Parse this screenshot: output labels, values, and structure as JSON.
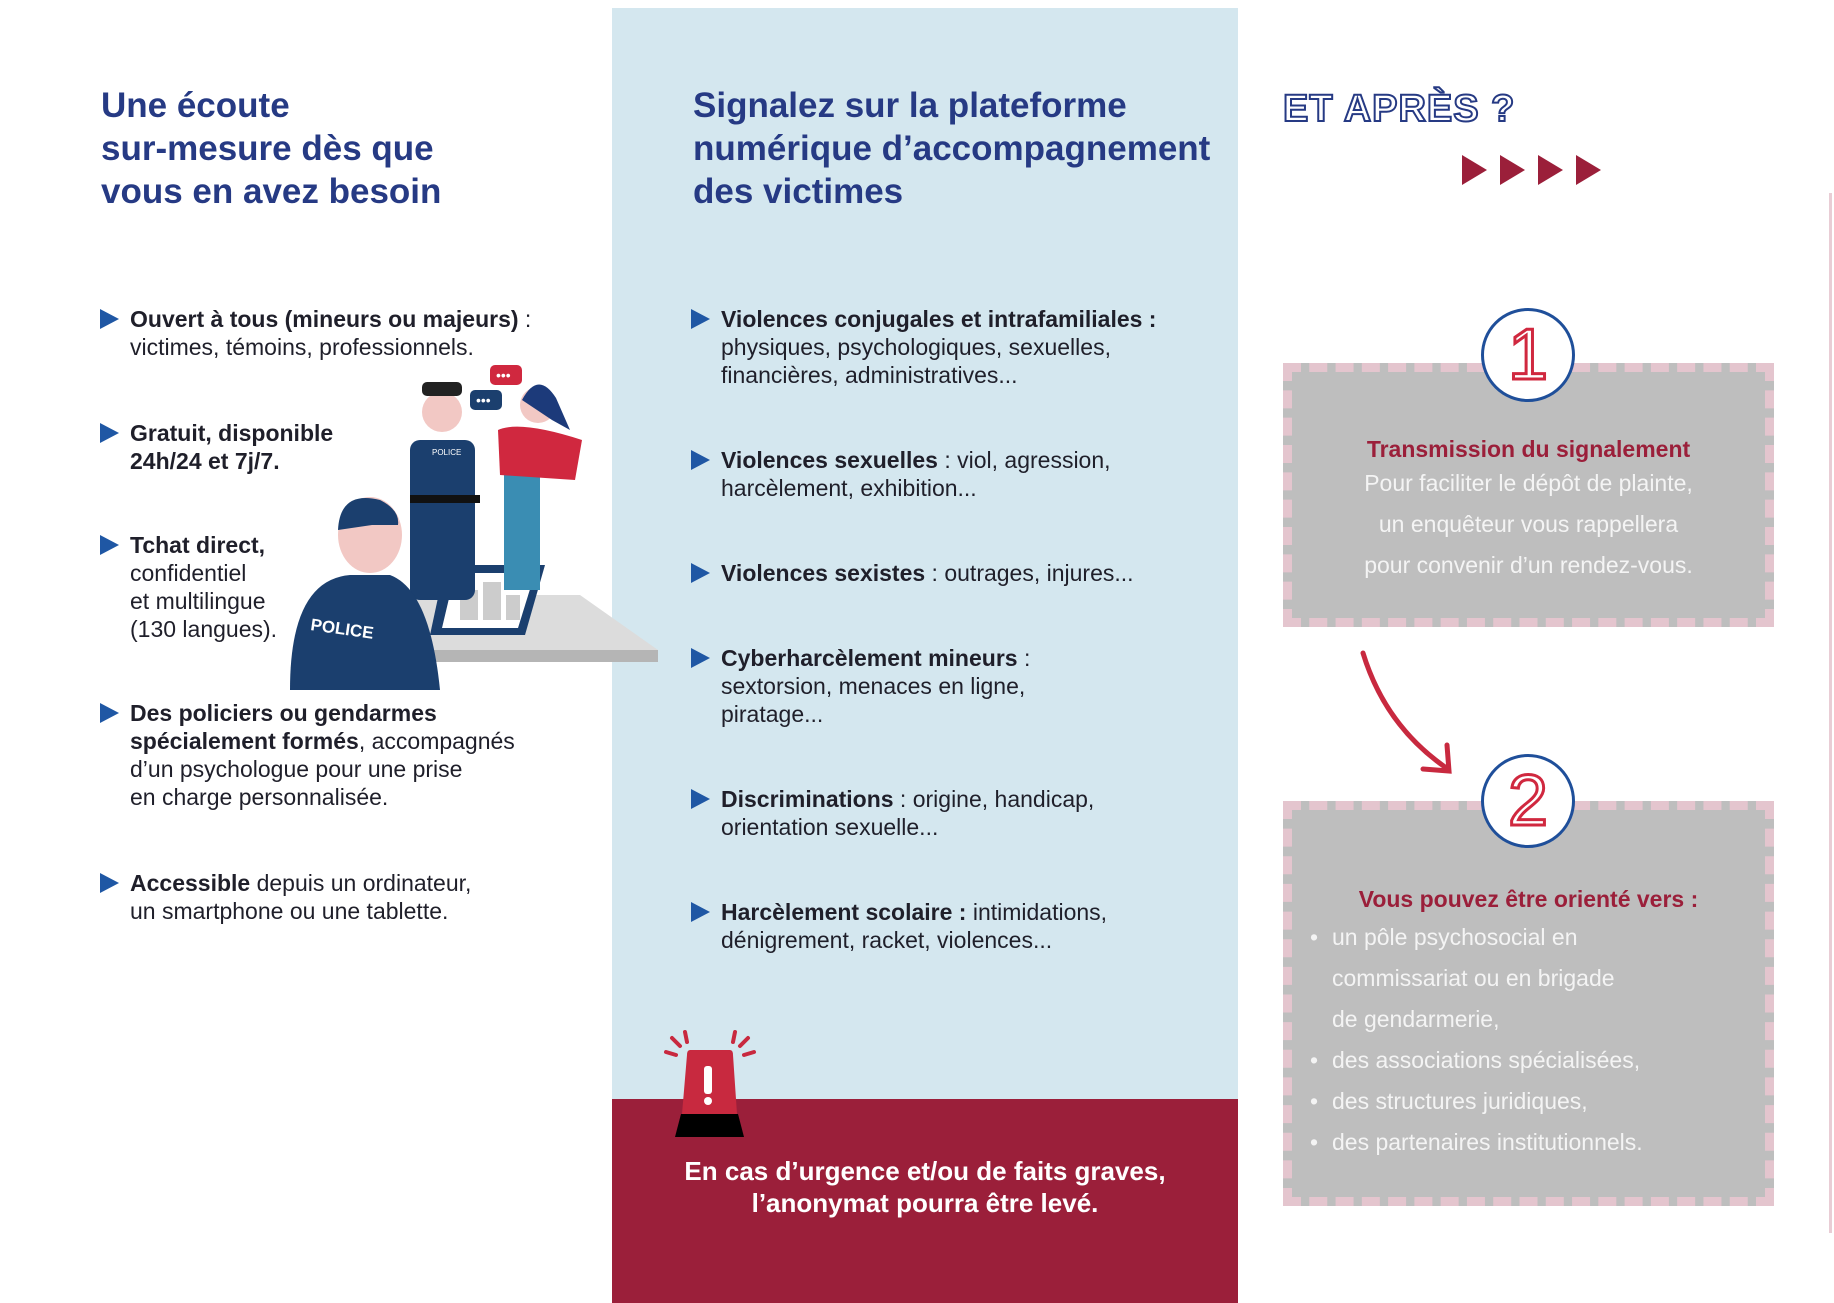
{
  "left": {
    "title": [
      "Une écoute",
      "sur-mesure dès que",
      "vous en avez besoin"
    ],
    "items": [
      {
        "bold": "Ouvert à tous (mineurs ou majeurs)",
        "rest": " :",
        "lines": [
          "victimes, témoins, professionnels."
        ]
      },
      {
        "bold": "Gratuit, disponible",
        "rest": "",
        "lines_bold": [
          "24h/24 et 7j/7."
        ]
      },
      {
        "bold": "Tchat direct,",
        "rest": "",
        "lines": [
          "confidentiel",
          "et multilingue",
          "(130 langues)."
        ]
      },
      {
        "bold": "Des policiers ou gendarmes",
        "rest": "",
        "line2_bold": "spécialement formés",
        "line2_rest": ", accompagnés",
        "lines": [
          "d’un psychologue pour une prise",
          "en charge personnalisée."
        ]
      },
      {
        "bold": "Accessible",
        "rest": " depuis un ordinateur,",
        "lines": [
          "un smartphone ou une tablette."
        ]
      }
    ],
    "illustration": {
      "police_label": "POLICE",
      "badge_label": "POLICE"
    }
  },
  "middle": {
    "title": [
      "Signalez sur la plateforme",
      "numérique d’accompagnement",
      "des victimes"
    ],
    "items": [
      {
        "bold": "Violences conjugales et intrafamiliales :",
        "rest": "",
        "lines": [
          "physiques, psychologiques, sexuelles,",
          "financières, administratives..."
        ]
      },
      {
        "bold": "Violences sexuelles",
        "rest": " : viol, agression,",
        "lines": [
          "harcèlement, exhibition..."
        ]
      },
      {
        "bold": "Violences sexistes",
        "rest": " : outrages, injures...",
        "lines": []
      },
      {
        "bold": "Cyberharcèlement mineurs",
        "rest": " :",
        "lines": [
          "sextorsion, menaces en ligne,",
          "piratage..."
        ]
      },
      {
        "bold": "Discriminations",
        "rest": " : origine, handicap,",
        "lines": [
          "orientation sexuelle..."
        ]
      },
      {
        "bold": "Harcèlement scolaire :",
        "rest": " intimidations,",
        "lines": [
          "dénigrement, racket, violences..."
        ]
      }
    ],
    "urgent": [
      "En cas d’urgence et/ou de faits graves,",
      "l’anonymat pourra être levé."
    ],
    "alarm_icon": "siren-icon"
  },
  "right": {
    "title": "ET APRÈS ?",
    "step1": {
      "number": "1",
      "title": "Transmission du signalement",
      "lines": [
        "Pour faciliter le dépôt de plainte,",
        "un enquêteur vous rappellera",
        "pour convenir d’un rendez-vous."
      ]
    },
    "step2": {
      "number": "2",
      "title": "Vous pouvez être orienté vers :",
      "bullets": [
        [
          "un pôle psychosocial en",
          "commissariat ou en brigade",
          "de gendarmerie,"
        ],
        [
          "des associations spécialisées,"
        ],
        [
          "des structures juridiques,"
        ],
        [
          "des partenaires institutionnels."
        ]
      ]
    }
  },
  "colors": {
    "navy": "#263a84",
    "bullet_blue": "#1f57a4",
    "crimson": "#9b1f3a",
    "light_blue": "#d4e7ef",
    "gray_box": "#bebebe",
    "dash_pink": "#e4c5ce"
  }
}
